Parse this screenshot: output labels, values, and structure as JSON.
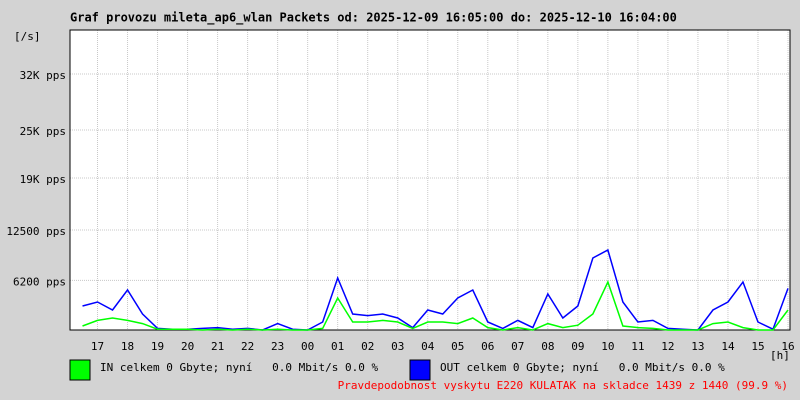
{
  "chart_data": {
    "type": "line",
    "title": "Graf provozu mileta_ap6_wlan Packets od: 2025-12-09 16:05:00 do: 2025-12-10 16:04:00",
    "y_unit": "[/s]",
    "x_unit": "[h]",
    "x": [
      0.5,
      1,
      1.5,
      2,
      2.5,
      3,
      3.5,
      4,
      4.5,
      5,
      5.5,
      6,
      6.5,
      7,
      7.5,
      8,
      8.5,
      9,
      9.5,
      10,
      10.5,
      11,
      11.5,
      12,
      12.5,
      13,
      13.5,
      14,
      14.5,
      15,
      15.5,
      16,
      16.5,
      17,
      17.5,
      18,
      18.5,
      19,
      19.5,
      20,
      20.5,
      21,
      21.5,
      22,
      22.5,
      23,
      23.5,
      24
    ],
    "xlim": [
      0.0833,
      24.0667
    ],
    "xticks": [
      {
        "value": 1,
        "label": "17"
      },
      {
        "value": 2,
        "label": "18"
      },
      {
        "value": 3,
        "label": "19"
      },
      {
        "value": 4,
        "label": "20"
      },
      {
        "value": 5,
        "label": "21"
      },
      {
        "value": 6,
        "label": "22"
      },
      {
        "value": 7,
        "label": "23"
      },
      {
        "value": 8,
        "label": "00"
      },
      {
        "value": 9,
        "label": "01"
      },
      {
        "value": 10,
        "label": "02"
      },
      {
        "value": 11,
        "label": "03"
      },
      {
        "value": 12,
        "label": "04"
      },
      {
        "value": 13,
        "label": "05"
      },
      {
        "value": 14,
        "label": "06"
      },
      {
        "value": 15,
        "label": "07"
      },
      {
        "value": 16,
        "label": "08"
      },
      {
        "value": 17,
        "label": "09"
      },
      {
        "value": 18,
        "label": "10"
      },
      {
        "value": 19,
        "label": "11"
      },
      {
        "value": 20,
        "label": "12"
      },
      {
        "value": 21,
        "label": "13"
      },
      {
        "value": 22,
        "label": "14"
      },
      {
        "value": 23,
        "label": "15"
      },
      {
        "value": 24,
        "label": "16"
      }
    ],
    "ylim": [
      0,
      37500
    ],
    "yticks": [
      {
        "value": 6200,
        "label": "6200 pps"
      },
      {
        "value": 12500,
        "label": "12500 pps"
      },
      {
        "value": 19000,
        "label": "19K pps"
      },
      {
        "value": 25000,
        "label": "25K pps"
      },
      {
        "value": 32000,
        "label": "32K pps"
      }
    ],
    "grid": true,
    "series": [
      {
        "name": "IN celkem 0 Gbyte; nyní   0.0 Mbit/s 0.0 %",
        "color": "#00ff00",
        "values": [
          500,
          1200,
          1500,
          1200,
          800,
          100,
          100,
          100,
          0,
          100,
          0,
          100,
          0,
          100,
          0,
          0,
          200,
          4000,
          1000,
          1000,
          1200,
          1000,
          200,
          1000,
          1000,
          800,
          1500,
          300,
          0,
          300,
          0,
          800,
          300,
          600,
          2000,
          6000,
          500,
          300,
          200,
          0,
          0,
          0,
          800,
          1000,
          300,
          0,
          0,
          2500
        ]
      },
      {
        "name": "OUT celkem 0 Gbyte; nyní   0.0 Mbit/s 0.0 %",
        "color": "#0000ff",
        "values": [
          3000,
          3500,
          2500,
          5000,
          2000,
          200,
          100,
          100,
          200,
          300,
          100,
          200,
          0,
          800,
          100,
          0,
          1000,
          6500,
          2000,
          1800,
          2000,
          1500,
          300,
          2500,
          2000,
          4000,
          5000,
          1000,
          200,
          1200,
          300,
          4500,
          1500,
          3000,
          9000,
          10000,
          3500,
          1000,
          1200,
          200,
          100,
          0,
          2500,
          3500,
          6000,
          1000,
          100,
          5200
        ]
      }
    ],
    "footer": "Pravdepodobnost vyskytu E220 KULATAK na skladce 1439 z 1440 (99.9 %)"
  }
}
